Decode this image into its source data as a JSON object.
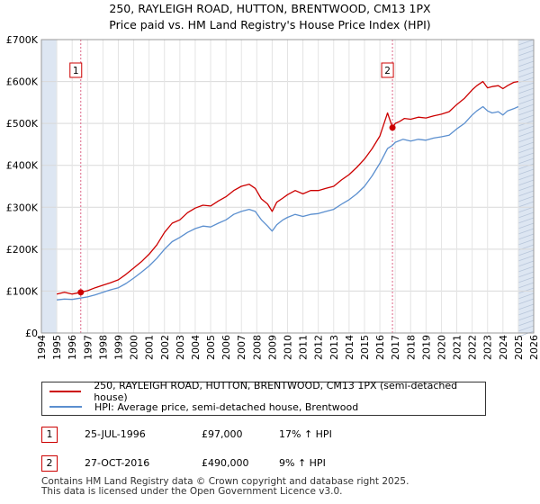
{
  "header": {
    "title": "250, RAYLEIGH ROAD, HUTTON, BRENTWOOD, CM13 1PX",
    "subtitle": "Price paid vs. HM Land Registry's House Price Index (HPI)"
  },
  "colors": {
    "property": "#cc0000",
    "hpi": "#5b8fcf",
    "shade": "#dde6f2",
    "marker": "#cc0000"
  },
  "chart_data": {
    "type": "line",
    "title": "Price paid vs. HM Land Registry's House Price Index (HPI)",
    "xlim": [
      1994,
      2026
    ],
    "ylim": [
      0,
      700000
    ],
    "x_ticks": [
      1994,
      1995,
      1996,
      1997,
      1998,
      1999,
      2000,
      2001,
      2002,
      2003,
      2004,
      2005,
      2006,
      2007,
      2008,
      2009,
      2010,
      2011,
      2012,
      2013,
      2014,
      2015,
      2016,
      2017,
      2018,
      2019,
      2020,
      2021,
      2022,
      2023,
      2024,
      2025,
      2026
    ],
    "y_ticks": [
      0,
      100000,
      200000,
      300000,
      400000,
      500000,
      600000,
      700000
    ],
    "y_tick_labels": [
      "£0",
      "£100K",
      "£200K",
      "£300K",
      "£400K",
      "£500K",
      "£600K",
      "£700K"
    ],
    "shaded_ranges": [
      [
        1994,
        1995
      ],
      [
        2025,
        2026
      ]
    ],
    "series": [
      {
        "name": "250, RAYLEIGH ROAD, HUTTON, BRENTWOOD, CM13 1PX (semi-detached house)",
        "color": "#cc0000",
        "x": [
          1995.0,
          1995.5,
          1996.0,
          1996.56,
          1997.0,
          1997.5,
          1998.0,
          1998.5,
          1999.0,
          1999.5,
          2000.0,
          2000.5,
          2001.0,
          2001.5,
          2002.0,
          2002.5,
          2003.0,
          2003.5,
          2004.0,
          2004.5,
          2005.0,
          2005.5,
          2006.0,
          2006.5,
          2007.0,
          2007.5,
          2007.9,
          2008.3,
          2008.7,
          2009.0,
          2009.3,
          2009.7,
          2010.0,
          2010.5,
          2011.0,
          2011.5,
          2012.0,
          2012.5,
          2013.0,
          2013.5,
          2014.0,
          2014.5,
          2015.0,
          2015.5,
          2016.0,
          2016.5,
          2016.82,
          2017.0,
          2017.3,
          2017.6,
          2018.0,
          2018.5,
          2019.0,
          2019.5,
          2020.0,
          2020.5,
          2021.0,
          2021.5,
          2022.0,
          2022.3,
          2022.7,
          2023.0,
          2023.3,
          2023.7,
          2024.0,
          2024.3,
          2024.7,
          2025.0
        ],
        "values": [
          93000,
          97000,
          93000,
          97000,
          101000,
          108000,
          114000,
          120000,
          127000,
          140000,
          155000,
          170000,
          188000,
          210000,
          240000,
          262000,
          270000,
          287000,
          298000,
          305000,
          303000,
          315000,
          325000,
          340000,
          350000,
          355000,
          345000,
          320000,
          308000,
          290000,
          312000,
          322000,
          330000,
          340000,
          332000,
          340000,
          340000,
          345000,
          350000,
          365000,
          378000,
          395000,
          415000,
          440000,
          470000,
          525000,
          490000,
          500000,
          505000,
          512000,
          510000,
          515000,
          513000,
          518000,
          522000,
          528000,
          545000,
          560000,
          580000,
          590000,
          600000,
          585000,
          588000,
          590000,
          583000,
          590000,
          598000,
          600000
        ]
      },
      {
        "name": "HPI: Average price, semi-detached house, Brentwood",
        "color": "#5b8fcf",
        "x": [
          1995.0,
          1995.5,
          1996.0,
          1996.5,
          1997.0,
          1997.5,
          1998.0,
          1998.5,
          1999.0,
          1999.5,
          2000.0,
          2000.5,
          2001.0,
          2001.5,
          2002.0,
          2002.5,
          2003.0,
          2003.5,
          2004.0,
          2004.5,
          2005.0,
          2005.5,
          2006.0,
          2006.5,
          2007.0,
          2007.5,
          2007.9,
          2008.3,
          2008.7,
          2009.0,
          2009.3,
          2009.7,
          2010.0,
          2010.5,
          2011.0,
          2011.5,
          2012.0,
          2012.5,
          2013.0,
          2013.5,
          2014.0,
          2014.5,
          2015.0,
          2015.5,
          2016.0,
          2016.5,
          2016.82,
          2017.0,
          2017.5,
          2018.0,
          2018.5,
          2019.0,
          2019.5,
          2020.0,
          2020.5,
          2021.0,
          2021.5,
          2022.0,
          2022.3,
          2022.7,
          2023.0,
          2023.3,
          2023.7,
          2024.0,
          2024.3,
          2024.7,
          2025.0
        ],
        "values": [
          79000,
          81000,
          80000,
          83000,
          86000,
          91000,
          97000,
          103000,
          108000,
          118000,
          131000,
          145000,
          160000,
          178000,
          200000,
          218000,
          228000,
          240000,
          249000,
          255000,
          253000,
          262000,
          270000,
          283000,
          290000,
          295000,
          290000,
          270000,
          255000,
          243000,
          258000,
          270000,
          276000,
          283000,
          278000,
          283000,
          285000,
          290000,
          295000,
          307000,
          318000,
          332000,
          350000,
          375000,
          405000,
          440000,
          448000,
          455000,
          462000,
          458000,
          462000,
          460000,
          465000,
          468000,
          472000,
          487000,
          500000,
          520000,
          530000,
          540000,
          530000,
          525000,
          528000,
          520000,
          530000,
          535000,
          540000
        ]
      }
    ],
    "annotations": [
      {
        "label": "1",
        "x": 1996.56,
        "y": 97000,
        "date": "25-JUL-1996",
        "price": "£97,000",
        "hpi": "17% ↑ HPI"
      },
      {
        "label": "2",
        "x": 2016.82,
        "y": 490000,
        "date": "27-OCT-2016",
        "price": "£490,000",
        "hpi": "9% ↑ HPI"
      }
    ]
  },
  "legend": {
    "property_label": "250, RAYLEIGH ROAD, HUTTON, BRENTWOOD, CM13 1PX (semi-detached house)",
    "hpi_label": "HPI: Average price, semi-detached house, Brentwood"
  },
  "transactions": [
    {
      "num": "1",
      "date": "25-JUL-1996",
      "price": "£97,000",
      "hpi": "17% ↑ HPI"
    },
    {
      "num": "2",
      "date": "27-OCT-2016",
      "price": "£490,000",
      "hpi": "9% ↑ HPI"
    }
  ],
  "footer": {
    "line1": "Contains HM Land Registry data © Crown copyright and database right 2025.",
    "line2": "This data is licensed under the Open Government Licence v3.0."
  }
}
